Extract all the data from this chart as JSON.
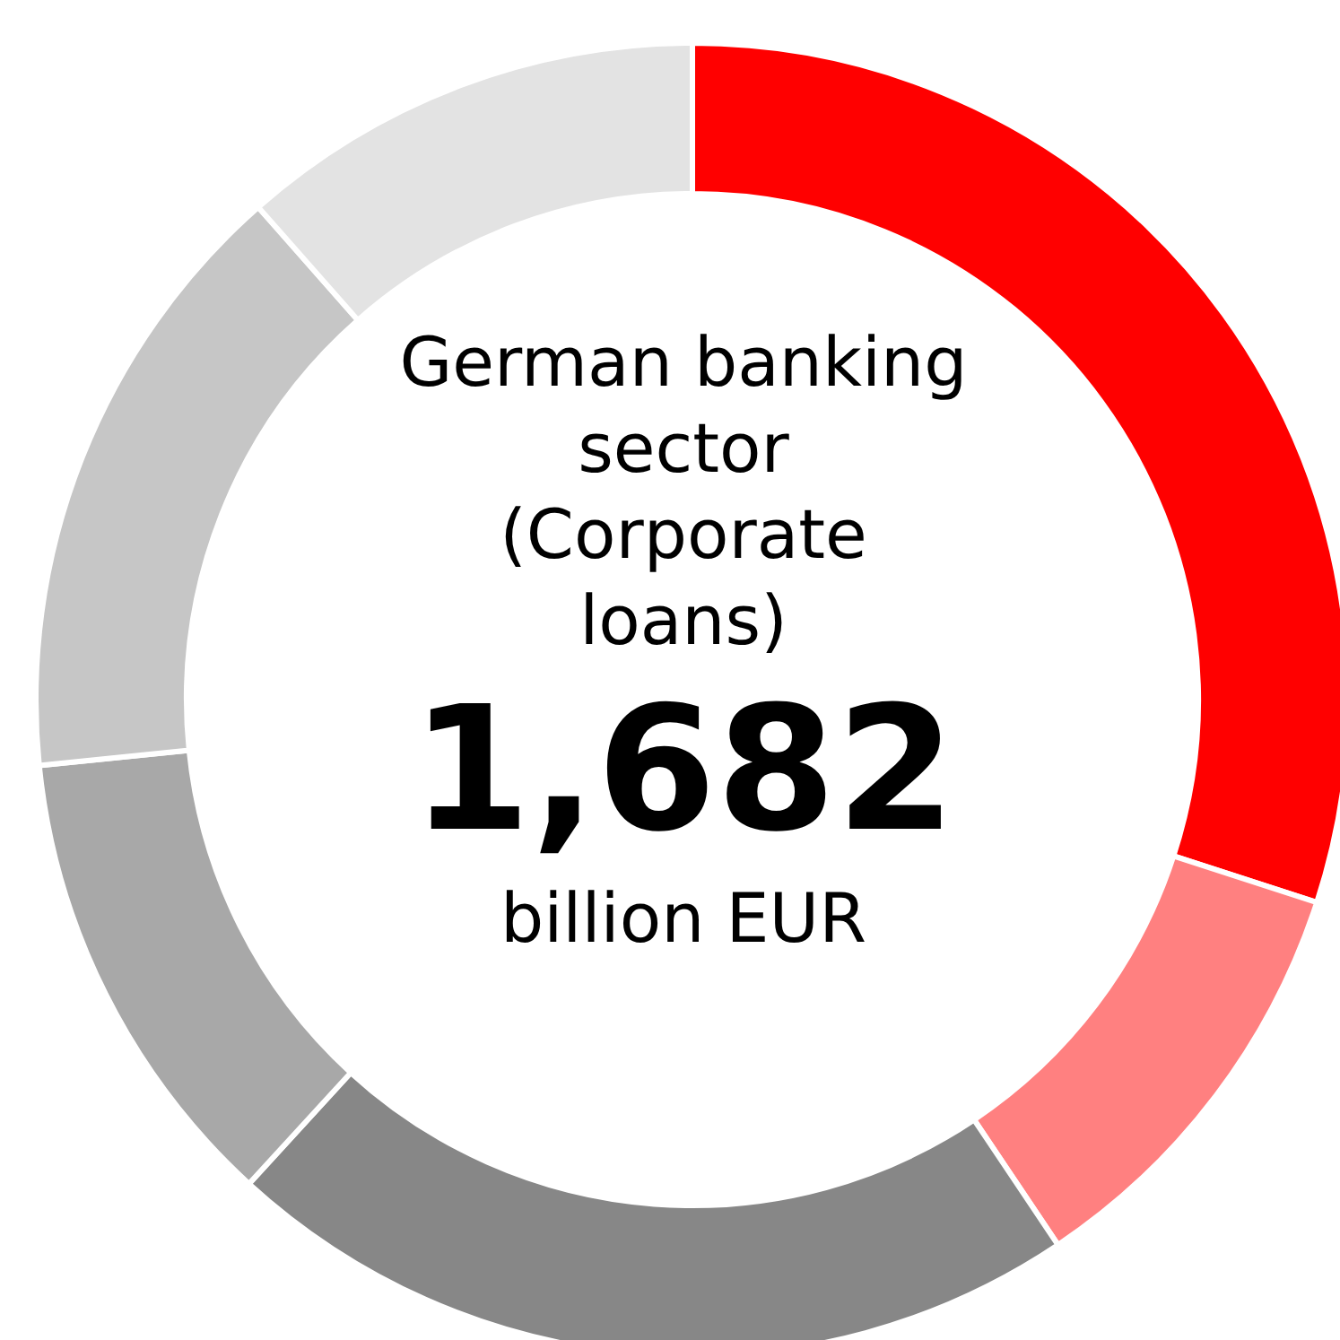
{
  "chart_data": {
    "type": "donut",
    "title": "German banking sector (Corporate loans)",
    "annotations": [
      "1,682",
      "billion EUR"
    ],
    "categories": [
      null,
      null,
      null,
      null,
      null,
      null
    ],
    "values": [
      30,
      10.6,
      21.2,
      11.6,
      15.1,
      11.5
    ],
    "colors": [
      "#ff0000",
      "#ff8080",
      "#878787",
      "#a8a8a8",
      "#c6c6c6",
      "#e3e3e3"
    ],
    "legend": false
  }
}
